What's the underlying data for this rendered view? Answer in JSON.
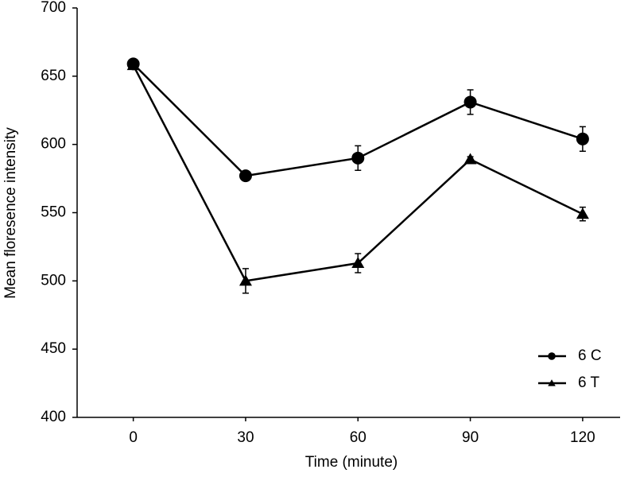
{
  "chart_data": {
    "type": "line",
    "x_label": "Time (minute)",
    "y_label": "Mean floresence intensity",
    "x": [
      0,
      30,
      60,
      90,
      120
    ],
    "series": [
      {
        "name": "6 C",
        "color": "#000000",
        "marker": "circle",
        "values": [
          659,
          577,
          590,
          631,
          604
        ],
        "errors": [
          2,
          2,
          9,
          9,
          9
        ]
      },
      {
        "name": "6 T",
        "color": "#000000",
        "marker": "triangle",
        "values": [
          658,
          500,
          513,
          589,
          549
        ],
        "errors": [
          2,
          9,
          7,
          2,
          5
        ]
      }
    ],
    "xlim": [
      -15,
      130
    ],
    "xticks": [
      0,
      30,
      60,
      90,
      120
    ],
    "ylim": [
      400,
      700
    ],
    "yticks": [
      400,
      450,
      500,
      550,
      600,
      650,
      700
    ],
    "grid": false,
    "legend": "lower right"
  }
}
